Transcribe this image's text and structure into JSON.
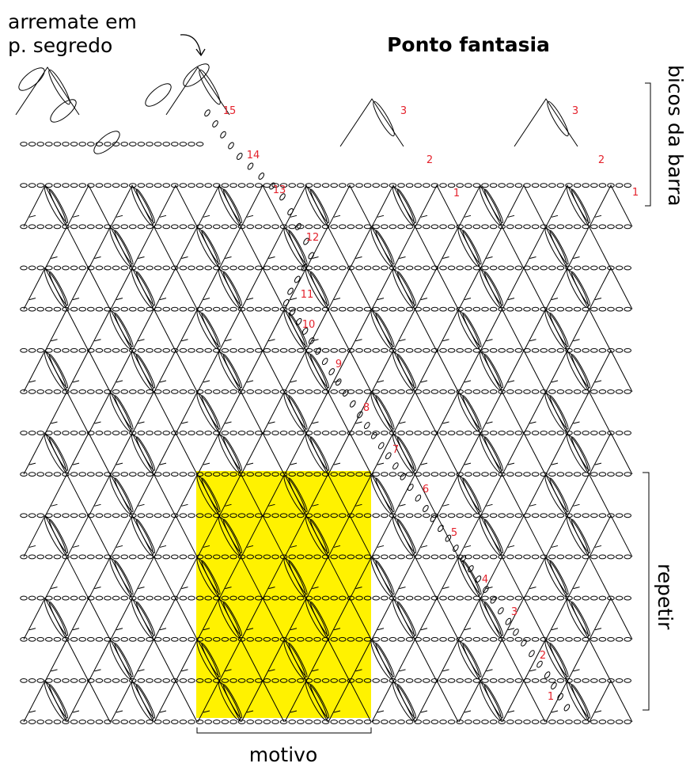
{
  "header": {
    "title": "Ponto fantasia",
    "finish_note": [
      "arremate em",
      "p. segredo"
    ]
  },
  "labels": {
    "top_bracket": "bicos da barra",
    "side_bracket": "repetir",
    "bottom_bracket": "motivo"
  },
  "row_numbers": [
    "1",
    "2",
    "3",
    "4",
    "5",
    "6",
    "7",
    "8",
    "9",
    "10",
    "11",
    "12",
    "13",
    "14",
    "15"
  ],
  "point_numbers": [
    [
      "3",
      "2",
      "1"
    ],
    [
      "3",
      "2",
      "1"
    ]
  ]
}
